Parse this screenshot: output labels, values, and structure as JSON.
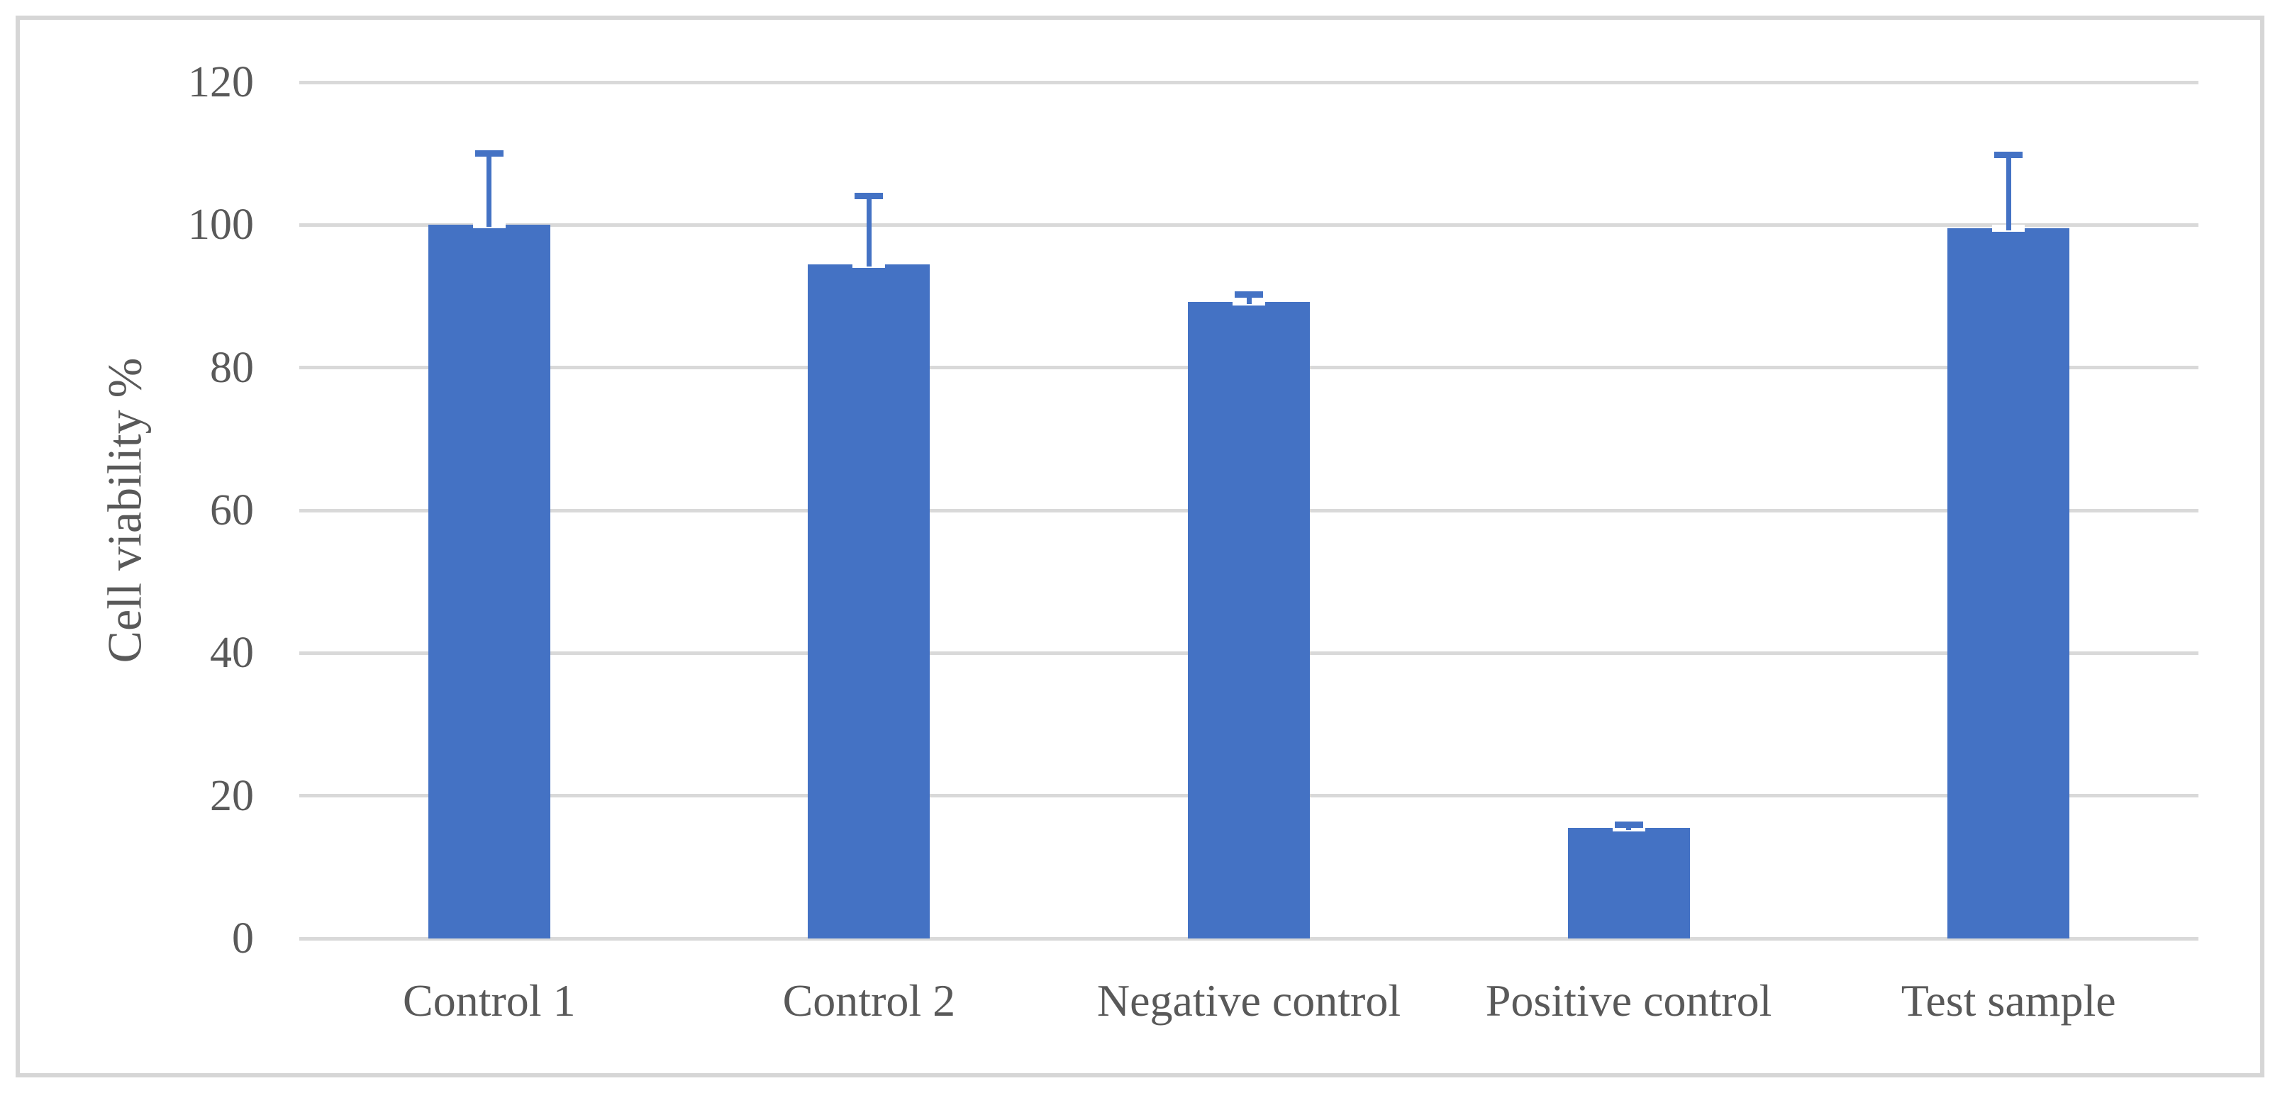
{
  "chart_data": {
    "type": "bar",
    "title": "",
    "categories": [
      "Control 1",
      "Control 2",
      "Negative control",
      "Positive control",
      "Test sample"
    ],
    "values": [
      100,
      94.5,
      89.2,
      15.5,
      99.5
    ],
    "errors_plus": [
      10,
      9.6,
      1.0,
      0.4,
      10.3
    ],
    "xlabel": "",
    "ylabel": "Cell viability %",
    "ylim": [
      0,
      120
    ],
    "yticks": [
      0,
      20,
      40,
      60,
      80,
      100,
      120
    ],
    "grid": "horizontal",
    "legend": "none",
    "bar_color": "#4472C4",
    "gridline_color": "#D9D9D9",
    "text_color": "#595959",
    "border_color": "#D6D6D6"
  }
}
